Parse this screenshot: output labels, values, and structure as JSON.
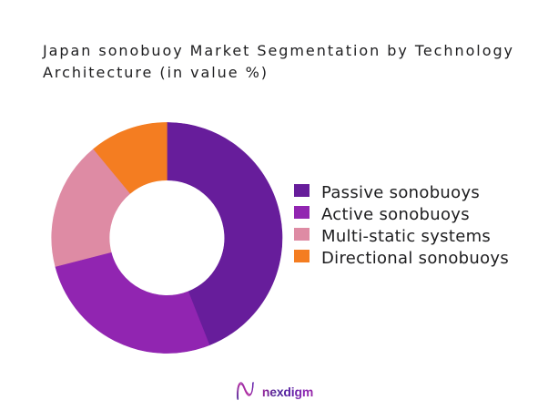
{
  "page": {
    "background": "#ffffff"
  },
  "title": {
    "lines": [
      "Japan sonobuoy Market Segmentation by Technology",
      "Architecture (in value %)"
    ],
    "color": "#1d1d1f"
  },
  "chart_data": {
    "type": "pie",
    "subtype": "donut",
    "title": "Japan sonobuoy Market Segmentation by Technology Architecture (in value %)",
    "unit": "value %",
    "categories": [
      "Passive sonobuoys",
      "Active sonobuoys",
      "Multi-static systems",
      "Directional sonobuoys"
    ],
    "values": [
      44,
      27,
      18,
      11
    ],
    "colors": [
      "#671d9b",
      "#9125b1",
      "#de8ba4",
      "#f47d21"
    ],
    "start_angle_deg": 0,
    "direction": "clockwise",
    "donut_hole_ratio": 0.5,
    "legend_position": "right",
    "data_labels": false
  },
  "legend": {
    "marker_shape": "rect"
  },
  "footer": {
    "brand": "nexdigm",
    "logo_icon": "nexdigm-wave-n"
  }
}
